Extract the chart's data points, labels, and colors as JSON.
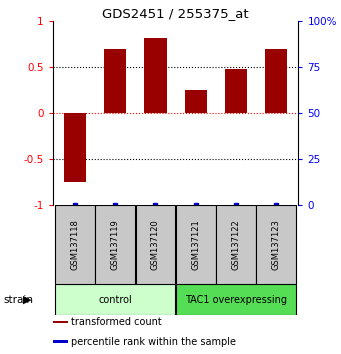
{
  "title": "GDS2451 / 255375_at",
  "samples": [
    "GSM137118",
    "GSM137119",
    "GSM137120",
    "GSM137121",
    "GSM137122",
    "GSM137123"
  ],
  "bar_values": [
    -0.75,
    0.7,
    0.82,
    0.25,
    0.48,
    0.7
  ],
  "bar_color": "#990000",
  "percentile_color": "#0000cc",
  "ylim": [
    -1.0,
    1.0
  ],
  "yticks_left": [
    -1.0,
    -0.5,
    0.0,
    0.5
  ],
  "yticks_left_labels": [
    "-1",
    "-0.5",
    "0",
    "0.5"
  ],
  "ytick_top_label": "1",
  "yticks_right": [
    0,
    25,
    50,
    75,
    100
  ],
  "yticks_right_labels": [
    "0",
    "25",
    "50",
    "75",
    "100%"
  ],
  "hlines_dotted": [
    -0.5,
    0.0,
    0.5
  ],
  "groups": [
    {
      "label": "control",
      "indices": [
        0,
        1,
        2
      ],
      "color": "#ccffcc",
      "edgecolor": "#000000"
    },
    {
      "label": "TAC1 overexpressing",
      "indices": [
        3,
        4,
        5
      ],
      "color": "#55dd55",
      "edgecolor": "#000000"
    }
  ],
  "strain_label": "strain",
  "legend_items": [
    {
      "color": "#990000",
      "label": "transformed count"
    },
    {
      "color": "#0000cc",
      "label": "percentile rank within the sample"
    }
  ],
  "sample_box_color": "#c8c8c8",
  "bar_width": 0.55
}
